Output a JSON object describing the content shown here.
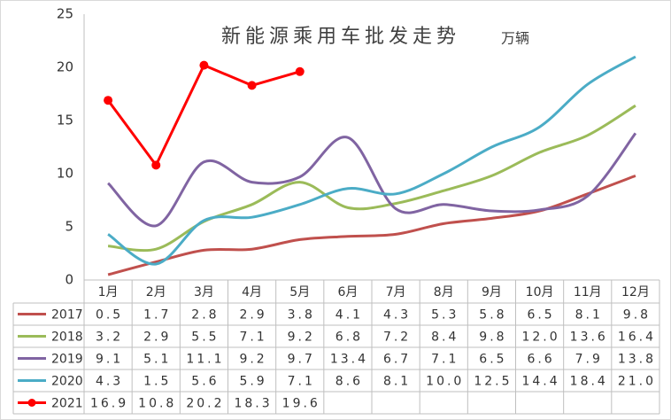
{
  "chart_data": {
    "type": "line",
    "title": "新能源乘用车批发走势",
    "subtitle": "万辆",
    "categories": [
      "1月",
      "2月",
      "3月",
      "4月",
      "5月",
      "6月",
      "7月",
      "8月",
      "9月",
      "10月",
      "11月",
      "12月"
    ],
    "ylim": [
      0,
      25
    ],
    "yticks": [
      0,
      5,
      10,
      15,
      20,
      25
    ],
    "grid": false,
    "smooth": true,
    "series": [
      {
        "name": "2017",
        "color": "#c0504d",
        "values": [
          0.5,
          1.7,
          2.8,
          2.9,
          3.8,
          4.1,
          4.3,
          5.3,
          5.8,
          6.5,
          8.1,
          9.8
        ],
        "value_labels": [
          "0.5",
          "1.7",
          "2.8",
          "2.9",
          "3.8",
          "4.1",
          "4.3",
          "5.3",
          "5.8",
          "6.5",
          "8.1",
          "9.8"
        ]
      },
      {
        "name": "2018",
        "color": "#9bbb59",
        "values": [
          3.2,
          2.9,
          5.5,
          7.1,
          9.2,
          6.8,
          7.2,
          8.4,
          9.8,
          12.0,
          13.6,
          16.4
        ],
        "value_labels": [
          "3.2",
          "2.9",
          "5.5",
          "7.1",
          "9.2",
          "6.8",
          "7.2",
          "8.4",
          "9.8",
          "12.0",
          "13.6",
          "16.4"
        ]
      },
      {
        "name": "2019",
        "color": "#8064a2",
        "values": [
          9.1,
          5.1,
          11.1,
          9.2,
          9.7,
          13.4,
          6.7,
          7.1,
          6.5,
          6.6,
          7.9,
          13.8
        ],
        "value_labels": [
          "9.1",
          "5.1",
          "11.1",
          "9.2",
          "9.7",
          "13.4",
          "6.7",
          "7.1",
          "6.5",
          "6.6",
          "7.9",
          "13.8"
        ]
      },
      {
        "name": "2020",
        "color": "#4bacc6",
        "values": [
          4.3,
          1.5,
          5.6,
          5.9,
          7.1,
          8.6,
          8.1,
          10.0,
          12.5,
          14.4,
          18.4,
          21.0
        ],
        "value_labels": [
          "4.3",
          "1.5",
          "5.6",
          "5.9",
          "7.1",
          "8.6",
          "8.1",
          "10.0",
          "12.5",
          "14.4",
          "18.4",
          "21.0"
        ]
      },
      {
        "name": "2021",
        "color": "#ff0000",
        "marker": true,
        "values": [
          16.9,
          10.8,
          20.2,
          18.3,
          19.6,
          null,
          null,
          null,
          null,
          null,
          null,
          null
        ],
        "value_labels": [
          "16.9",
          "10.8",
          "20.2",
          "18.3",
          "19.6",
          null,
          null,
          null,
          null,
          null,
          null,
          null
        ]
      }
    ]
  }
}
